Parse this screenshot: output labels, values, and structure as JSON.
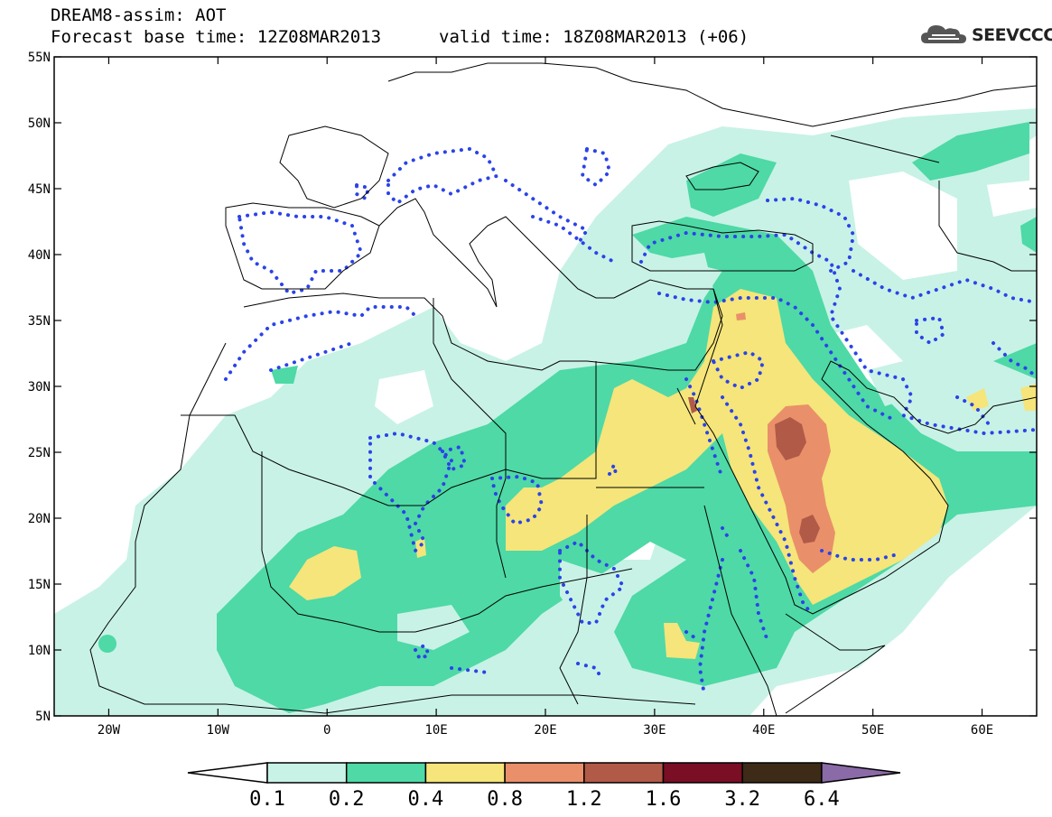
{
  "header": {
    "title": "DREAM8-assim: AOT",
    "base_time": "Forecast base time: 12Z08MAR2013",
    "valid_time": "valid time: 18Z08MAR2013 (+06)"
  },
  "logo": {
    "text": "SEEVCCC"
  },
  "axes": {
    "lon_range": [
      -25,
      65
    ],
    "lat_range": [
      5,
      55
    ],
    "lon_ticks": [
      {
        "value": -20,
        "label": "20W"
      },
      {
        "value": -10,
        "label": "10W"
      },
      {
        "value": 0,
        "label": "0"
      },
      {
        "value": 10,
        "label": "10E"
      },
      {
        "value": 20,
        "label": "20E"
      },
      {
        "value": 30,
        "label": "30E"
      },
      {
        "value": 40,
        "label": "40E"
      },
      {
        "value": 50,
        "label": "50E"
      },
      {
        "value": 60,
        "label": "60E"
      }
    ],
    "lat_ticks": [
      {
        "value": 55,
        "label": "55N"
      },
      {
        "value": 50,
        "label": "50N"
      },
      {
        "value": 45,
        "label": "45N"
      },
      {
        "value": 40,
        "label": "40N"
      },
      {
        "value": 35,
        "label": "35N"
      },
      {
        "value": 30,
        "label": "30N"
      },
      {
        "value": 25,
        "label": "25N"
      },
      {
        "value": 20,
        "label": "20N"
      },
      {
        "value": 15,
        "label": "15N"
      },
      {
        "value": 10,
        "label": "10N"
      },
      {
        "value": 5,
        "label": "5N"
      }
    ]
  },
  "colorbar": {
    "colors": [
      "#ffffff",
      "#c8f2e6",
      "#4ed9a6",
      "#f5e57a",
      "#e9906a",
      "#b25a48",
      "#7a0e24",
      "#3d2a17",
      "#8b6aa8"
    ],
    "labels": [
      "0.1",
      "0.2",
      "0.4",
      "0.8",
      "1.2",
      "1.6",
      "3.2",
      "6.4"
    ]
  },
  "contour_style": {
    "dotted_color": "#2b43e8",
    "coast_color": "#000000"
  }
}
